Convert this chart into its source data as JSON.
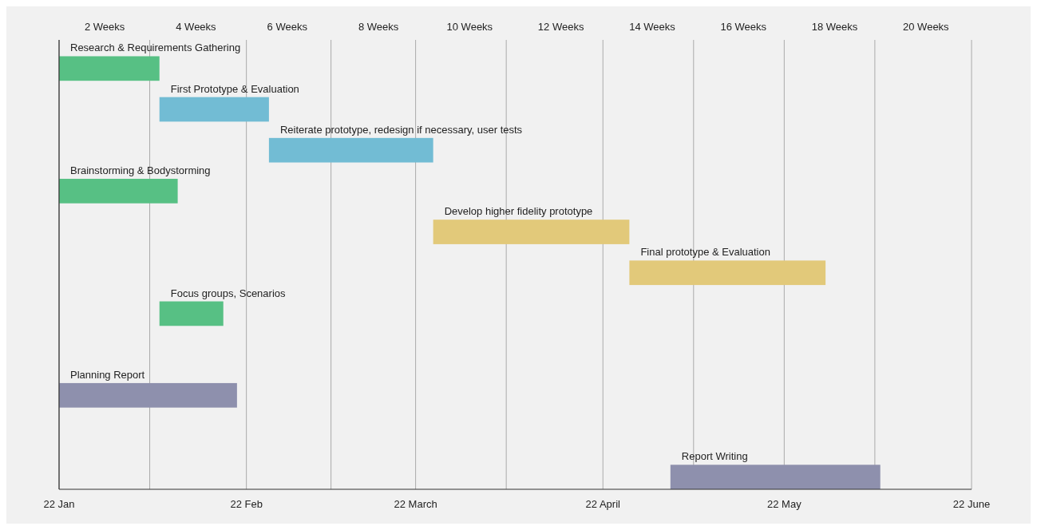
{
  "chart_data": {
    "type": "bar",
    "orientation": "horizontal",
    "grid": "x",
    "categories": [
      "Research & Requirements Gathering",
      "First Prototype & Evaluation",
      "Reiterate prototype, redesign if necessary, user tests",
      "Brainstorming & Bodystorming",
      "Develop higher fidelity prototype",
      "Final prototype & Evaluation",
      "Focus groups, Scenarios",
      null,
      "Planning Report",
      null,
      "Report Writing"
    ],
    "series": [
      {
        "axis": "x2",
        "base": [
          1,
          3.2,
          5.6,
          1,
          9.2,
          13.5,
          3.2,
          null,
          1,
          null,
          14.4
        ],
        "values": [
          2.2,
          2.4,
          3.6,
          2.6,
          4.3,
          4.3,
          1.4,
          null,
          3.9,
          null,
          4.6
        ],
        "colors": [
          "#57c084",
          "#72bcd4",
          "#72bcd4",
          "#57c084",
          "#e2c97a",
          "#e2c97a",
          "#57c084",
          null,
          "#8e90ad",
          null,
          "#8e90ad"
        ]
      }
    ],
    "xlim": [
      "--01-22",
      "--06-22"
    ],
    "xticks": [
      {
        "value": "--01-22",
        "label": "22 Jan"
      },
      {
        "value": "--02-06",
        "label": null
      },
      {
        "value": "--02-22",
        "label": "22 Feb"
      },
      {
        "value": "--03-08",
        "label": null
      },
      {
        "value": "--03-22",
        "label": "22 March"
      },
      {
        "value": "--04-06",
        "label": null
      },
      {
        "value": "--04-22",
        "label": "22 April"
      },
      {
        "value": "--05-07",
        "label": null
      },
      {
        "value": "--05-22",
        "label": "22 May"
      },
      {
        "value": "--06-06",
        "label": null
      },
      {
        "value": "--06-22",
        "label": "22 June"
      }
    ],
    "x2lim": [
      1,
      21
    ],
    "x2ticks": [
      {
        "value": 2,
        "label": "2 Weeks"
      },
      {
        "value": 4,
        "label": "4 Weeks"
      },
      {
        "value": 6,
        "label": "6 Weeks"
      },
      {
        "value": 8,
        "label": "8 Weeks"
      },
      {
        "value": 10,
        "label": "10 Weeks"
      },
      {
        "value": 12,
        "label": "12 Weeks"
      },
      {
        "value": 14,
        "label": "14 Weeks"
      },
      {
        "value": 16,
        "label": "16 Weeks"
      },
      {
        "value": 18,
        "label": "18 Weeks"
      },
      {
        "value": 20,
        "label": "20 Weeks"
      }
    ]
  }
}
